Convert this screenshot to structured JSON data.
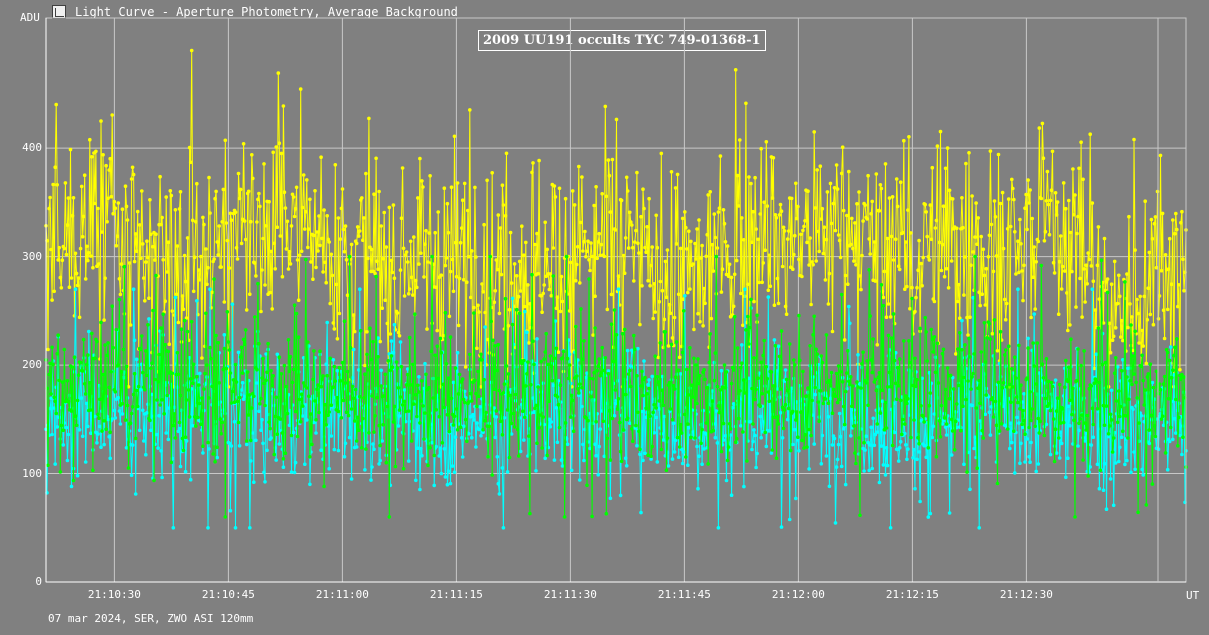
{
  "window": {
    "title": "Light Curve - Aperture Photometry, Average Background",
    "icon": "light-curve-app-icon"
  },
  "footer": {
    "caption": "07 mar 2024, SER, ZWO ASI 120mm"
  },
  "chart_data": {
    "type": "line",
    "title": "2009 UU191 occults TYC 749-01368-1",
    "ylabel": "ADU",
    "xlabel": "UT",
    "ylim": [
      0,
      520
    ],
    "xlim": [
      "21:10:21",
      "21:12:51"
    ],
    "x_tick_labels": [
      "21:10:30",
      "21:10:45",
      "21:11:00",
      "21:11:15",
      "21:11:30",
      "21:11:45",
      "21:12:00",
      "21:12:15",
      "21:12:30"
    ],
    "y_ticks": [
      0,
      100,
      200,
      300,
      400
    ],
    "grid": true,
    "markers": true,
    "series": [
      {
        "color": "#ffff00",
        "trend": [
          [
            "21:10:21",
            290
          ],
          [
            "21:10:24",
            310
          ],
          [
            "21:10:27",
            340
          ],
          [
            "21:10:29",
            350
          ],
          [
            "21:10:31",
            290
          ],
          [
            "21:10:34",
            275
          ],
          [
            "21:10:38",
            300
          ],
          [
            "21:10:42",
            305
          ],
          [
            "21:10:46",
            320
          ],
          [
            "21:10:50",
            325
          ],
          [
            "21:10:54",
            320
          ],
          [
            "21:10:58",
            330
          ],
          [
            "21:11:02",
            295
          ],
          [
            "21:11:06",
            290
          ],
          [
            "21:11:10",
            300
          ],
          [
            "21:11:14",
            305
          ],
          [
            "21:11:18",
            290
          ],
          [
            "21:11:22",
            280
          ],
          [
            "21:11:26",
            305
          ],
          [
            "21:11:30",
            300
          ],
          [
            "21:11:34",
            315
          ],
          [
            "21:11:38",
            305
          ],
          [
            "21:11:42",
            280
          ],
          [
            "21:11:46",
            280
          ],
          [
            "21:11:50",
            300
          ],
          [
            "21:11:54",
            330
          ],
          [
            "21:11:58",
            315
          ],
          [
            "21:12:02",
            320
          ],
          [
            "21:12:06",
            330
          ],
          [
            "21:12:10",
            310
          ],
          [
            "21:12:14",
            300
          ],
          [
            "21:12:18",
            305
          ],
          [
            "21:12:22",
            310
          ],
          [
            "21:12:26",
            295
          ],
          [
            "21:12:30",
            300
          ],
          [
            "21:12:33",
            340
          ],
          [
            "21:12:37",
            310
          ],
          [
            "21:12:41",
            260
          ],
          [
            "21:12:44",
            250
          ],
          [
            "21:12:47",
            300
          ],
          [
            "21:12:51",
            295
          ]
        ],
        "min": 180,
        "max": 490
      },
      {
        "color": "#00ffff",
        "trend": [
          [
            "21:10:21",
            155
          ],
          [
            "21:10:30",
            160
          ],
          [
            "21:10:45",
            155
          ],
          [
            "21:11:00",
            160
          ],
          [
            "21:11:15",
            150
          ],
          [
            "21:11:30",
            155
          ],
          [
            "21:11:45",
            150
          ],
          [
            "21:12:00",
            160
          ],
          [
            "21:12:15",
            150
          ],
          [
            "21:12:30",
            155
          ],
          [
            "21:12:40",
            145
          ],
          [
            "21:12:51",
            150
          ]
        ],
        "min": 50,
        "max": 270
      },
      {
        "color": "#00ff00",
        "trend": [
          [
            "21:10:21",
            175
          ],
          [
            "21:10:30",
            185
          ],
          [
            "21:10:45",
            175
          ],
          [
            "21:11:00",
            180
          ],
          [
            "21:11:15",
            175
          ],
          [
            "21:11:30",
            180
          ],
          [
            "21:11:45",
            170
          ],
          [
            "21:12:00",
            185
          ],
          [
            "21:12:15",
            175
          ],
          [
            "21:12:30",
            180
          ],
          [
            "21:12:40",
            170
          ],
          [
            "21:12:51",
            175
          ]
        ],
        "min": 60,
        "max": 300
      }
    ]
  }
}
